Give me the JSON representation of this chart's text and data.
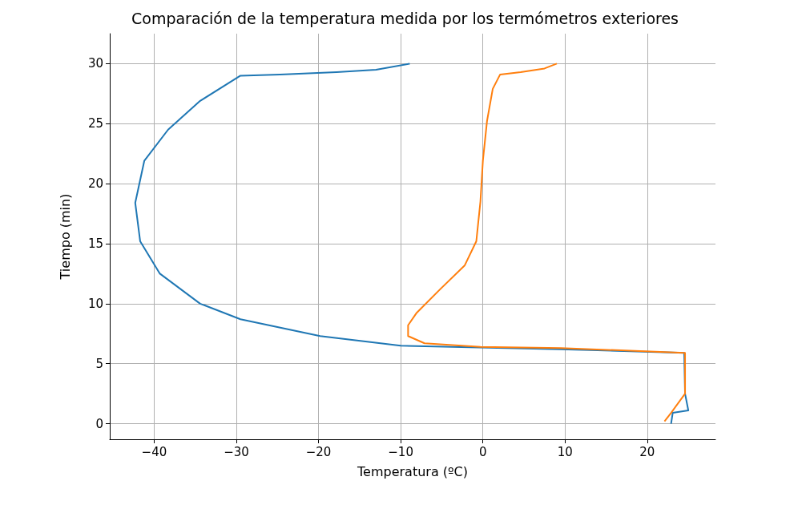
{
  "chart_data": {
    "type": "line",
    "title": "Comparación de la temperatura medida por los termómetros exteriores",
    "xlabel": "Temperatura (ºC)",
    "ylabel": "Tiempo (min)",
    "xlim": [
      -45.4,
      28.3
    ],
    "ylim": [
      -1.3,
      32.5
    ],
    "xticks": [
      -40,
      -30,
      -20,
      -10,
      0,
      10,
      20
    ],
    "yticks": [
      0,
      5,
      10,
      15,
      20,
      25,
      30
    ],
    "grid": true,
    "legend": false,
    "marker": "none",
    "line_style": "solid",
    "series": [
      {
        "color": "#1f77b4",
        "x": [
          22.9,
          23.1,
          25.0,
          24.6,
          24.5,
          9.5,
          -10,
          -19.8,
          -29.5,
          -34.4,
          -39.3,
          -41.7,
          -42.3,
          -41.2,
          -38.3,
          -34.4,
          -29.5,
          -24.7,
          -17.8,
          -13,
          -8.9
        ],
        "values": [
          0,
          0.9,
          1.1,
          2.5,
          5.9,
          6.2,
          6.5,
          7.3,
          8.7,
          10,
          12.5,
          15.2,
          18.4,
          21.9,
          24.5,
          26.9,
          29,
          29.1,
          29.3,
          29.5,
          30
        ]
      },
      {
        "color": "#ff7f0e",
        "x": [
          22.1,
          22.9,
          24.6,
          24.6,
          9.5,
          -0.3,
          -7.1,
          -9.1,
          -9.1,
          -8.1,
          -5.2,
          -2.2,
          -0.8,
          -0.3,
          0,
          0.5,
          1.2,
          2.1,
          4.6,
          7.5,
          9
        ],
        "values": [
          0.2,
          0.9,
          2.5,
          5.9,
          6.3,
          6.4,
          6.7,
          7.3,
          8.2,
          9.2,
          11.2,
          13.2,
          15.2,
          18.5,
          21.9,
          25.2,
          27.9,
          29.1,
          29.3,
          29.6,
          30
        ]
      }
    ]
  }
}
